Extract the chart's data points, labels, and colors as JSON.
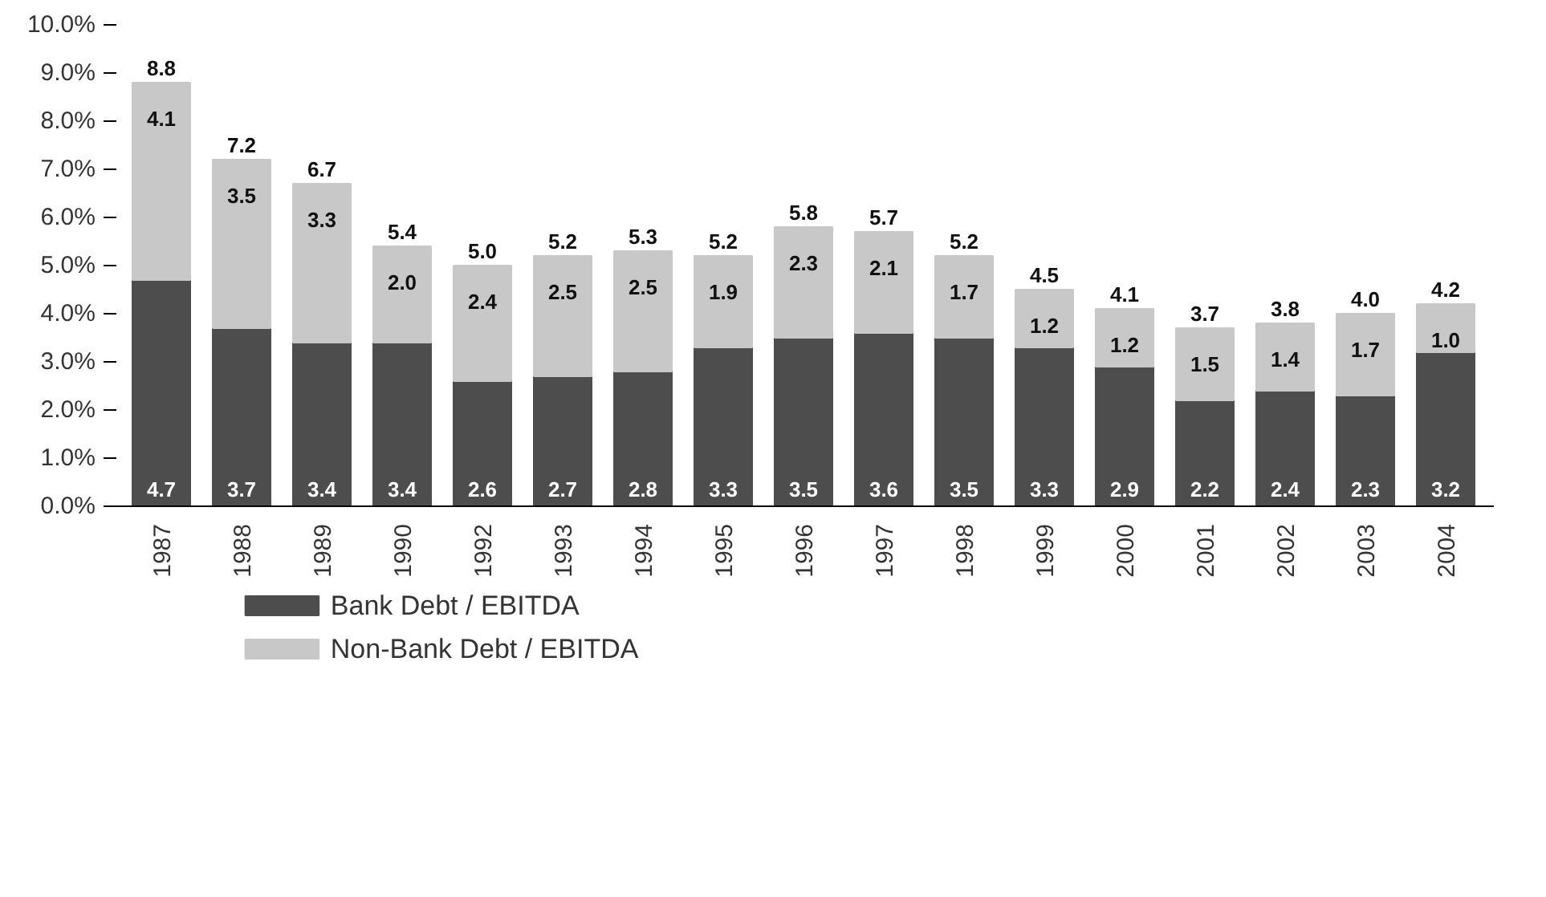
{
  "chart_data": {
    "type": "bar",
    "stacked": true,
    "categories": [
      "1987",
      "1988",
      "1989",
      "1990",
      "1992",
      "1993",
      "1994",
      "1995",
      "1996",
      "1997",
      "1998",
      "1999",
      "2000",
      "2001",
      "2002",
      "2003",
      "2004"
    ],
    "series": [
      {
        "name": "Bank Debt / EBITDA",
        "color": "#4d4d4d",
        "values": [
          4.7,
          3.7,
          3.4,
          3.4,
          2.6,
          2.7,
          2.8,
          3.3,
          3.5,
          3.6,
          3.5,
          3.3,
          2.9,
          2.2,
          2.4,
          2.3,
          3.2
        ],
        "value_labels": [
          "4.7",
          "3.7",
          "3.4",
          "3.4",
          "2.6",
          "2.7",
          "2.8",
          "3.3",
          "3.5",
          "3.6",
          "3.5",
          "3.3",
          "2.9",
          "2.2",
          "2.4",
          "2.3",
          "3.2"
        ]
      },
      {
        "name": "Non-Bank Debt / EBITDA",
        "color": "#c8c8c8",
        "values": [
          4.1,
          3.5,
          3.3,
          2.0,
          2.4,
          2.5,
          2.5,
          1.9,
          2.3,
          2.1,
          1.7,
          1.2,
          1.2,
          1.5,
          1.4,
          1.7,
          1.0
        ],
        "value_labels": [
          "4.1",
          "3.5",
          "3.3",
          "2.0",
          "2.4",
          "2.5",
          "2.5",
          "1.9",
          "2.3",
          "2.1",
          "1.7",
          "1.2",
          "1.2",
          "1.5",
          "1.4",
          "1.7",
          "1.0"
        ]
      }
    ],
    "totals": [
      "8.8",
      "7.2",
      "6.7",
      "5.4",
      "5.0",
      "5.2",
      "5.3",
      "5.2",
      "5.8",
      "5.7",
      "5.2",
      "4.5",
      "4.1",
      "3.7",
      "3.8",
      "4.0",
      "4.2"
    ],
    "ylim": [
      0,
      10
    ],
    "yticks": [
      {
        "value": 0,
        "label": "0.0%"
      },
      {
        "value": 1,
        "label": "1.0%"
      },
      {
        "value": 2,
        "label": "2.0%"
      },
      {
        "value": 3,
        "label": "3.0%"
      },
      {
        "value": 4,
        "label": "4.0%"
      },
      {
        "value": 5,
        "label": "5.0%"
      },
      {
        "value": 6,
        "label": "6.0%"
      },
      {
        "value": 7,
        "label": "7.0%"
      },
      {
        "value": 8,
        "label": "8.0%"
      },
      {
        "value": 9,
        "label": "9.0%"
      },
      {
        "value": 10,
        "label": "10.0%"
      }
    ],
    "grid": false,
    "legend": "bottom"
  }
}
